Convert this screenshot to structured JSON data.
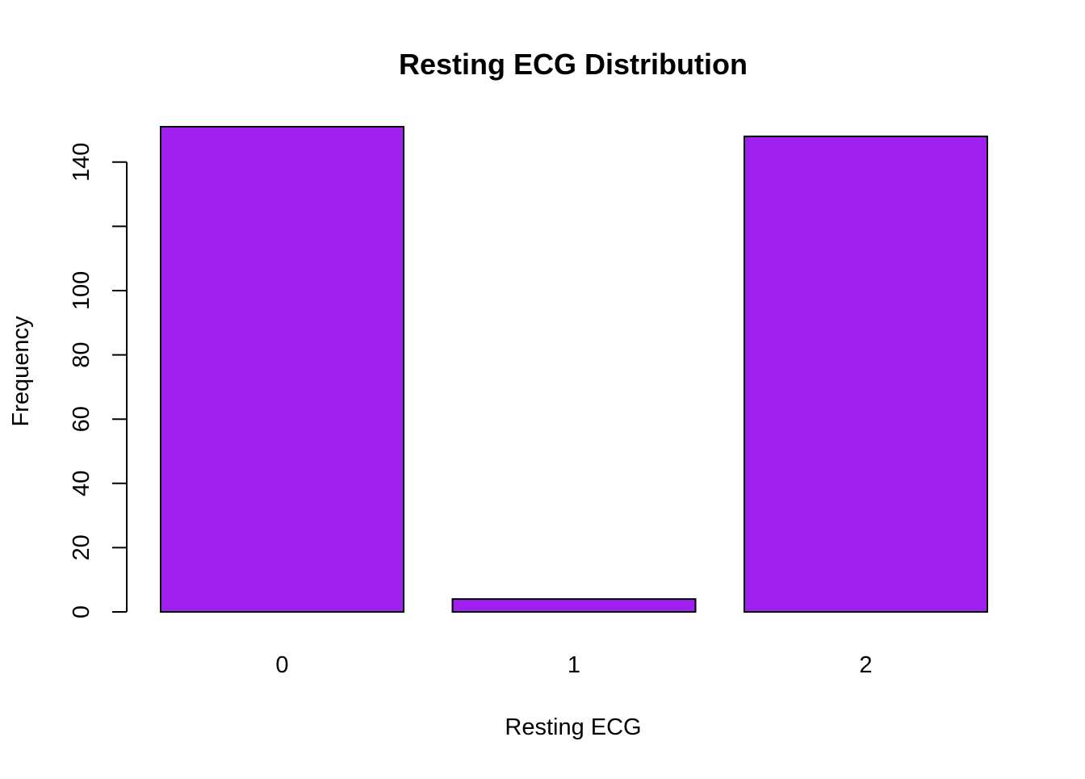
{
  "chart_data": {
    "type": "bar",
    "title": "Resting ECG Distribution",
    "xlabel": "Resting ECG",
    "ylabel": "Frequency",
    "categories": [
      "0",
      "1",
      "2"
    ],
    "values": [
      151,
      4,
      148
    ],
    "ylim": [
      0,
      151
    ],
    "yticks": [
      0,
      20,
      40,
      60,
      80,
      100,
      120,
      140
    ],
    "ytick_labels": [
      "0",
      "20",
      "40",
      "60",
      "80",
      "100",
      "",
      "140"
    ],
    "grid": false,
    "bar_color": "#A020F0",
    "bar_border_color": "#000000"
  }
}
